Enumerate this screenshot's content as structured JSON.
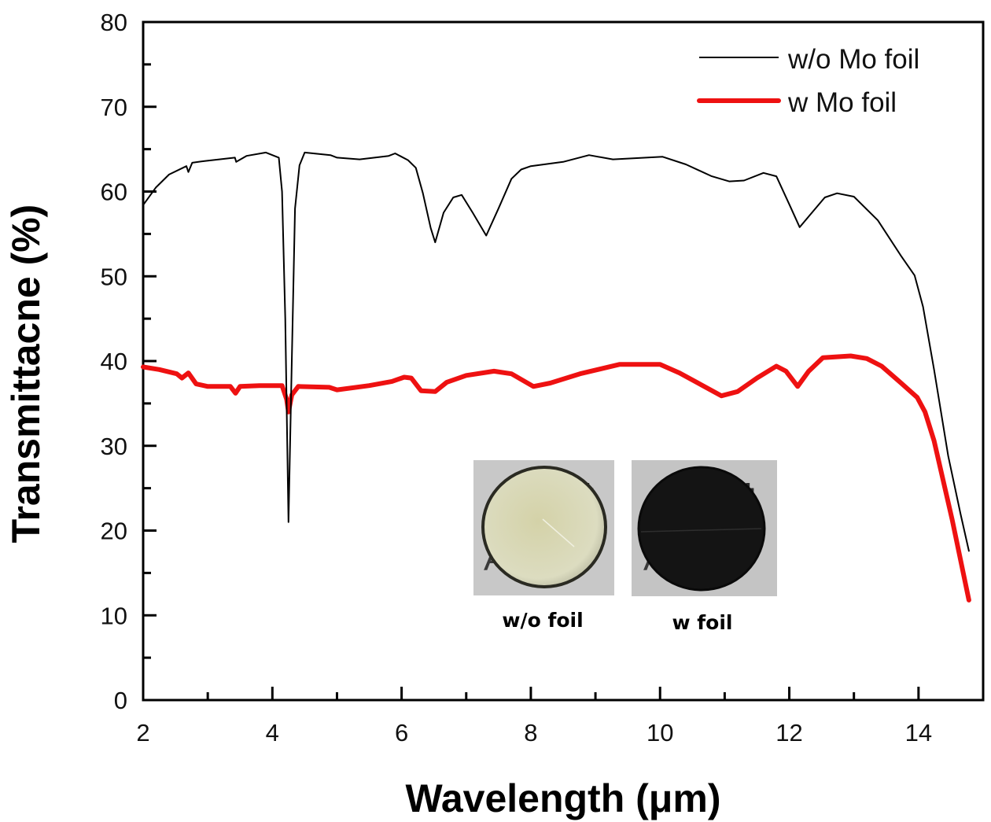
{
  "chart_data": {
    "type": "line",
    "title": "",
    "xlabel": "Wavelength (μm)",
    "ylabel": "Transmittacne (%)",
    "xlim": [
      2,
      15
    ],
    "ylim": [
      0,
      80
    ],
    "x_ticks": [
      2,
      4,
      6,
      8,
      10,
      12,
      14
    ],
    "x_minor_ticks": [
      3,
      5,
      7,
      9,
      11,
      13
    ],
    "y_ticks": [
      0,
      10,
      20,
      30,
      40,
      50,
      60,
      70,
      80
    ],
    "y_minor_ticks": [
      5,
      15,
      25,
      35,
      45,
      55,
      65,
      75
    ],
    "grid": false,
    "legend_position": "top-right",
    "series": [
      {
        "name": "w/o Mo foil",
        "color": "#000000",
        "x": [
          2.0,
          2.2,
          2.4,
          2.67,
          2.7,
          2.76,
          2.95,
          3.42,
          3.44,
          3.6,
          3.9,
          4.1,
          4.15,
          4.2,
          4.25,
          4.3,
          4.35,
          4.42,
          4.5,
          4.9,
          5.0,
          5.35,
          5.8,
          5.9,
          6.1,
          6.22,
          6.33,
          6.45,
          6.52,
          6.65,
          6.8,
          6.93,
          7.1,
          7.31,
          7.5,
          7.7,
          7.85,
          8.0,
          8.5,
          8.9,
          9.27,
          10.04,
          10.4,
          10.8,
          11.07,
          11.3,
          11.6,
          11.8,
          12.0,
          12.16,
          12.35,
          12.55,
          12.74,
          13.0,
          13.37,
          13.73,
          13.94,
          14.07,
          14.24,
          14.46,
          14.65,
          14.78
        ],
        "y": [
          58.4,
          60.5,
          62.0,
          63.0,
          62.3,
          63.4,
          63.6,
          64.0,
          63.5,
          64.2,
          64.6,
          64.0,
          60.0,
          45.0,
          21.0,
          40.0,
          58.0,
          63.1,
          64.6,
          64.3,
          64.0,
          63.8,
          64.2,
          64.5,
          63.7,
          62.8,
          59.8,
          55.7,
          54.0,
          57.5,
          59.3,
          59.6,
          57.5,
          54.8,
          58.0,
          61.5,
          62.6,
          63.0,
          63.5,
          64.3,
          63.8,
          64.1,
          63.2,
          61.8,
          61.2,
          61.3,
          62.2,
          61.8,
          58.5,
          55.8,
          57.5,
          59.3,
          59.8,
          59.4,
          56.6,
          52.4,
          50.1,
          46.4,
          39.0,
          28.8,
          22.0,
          17.6
        ]
      },
      {
        "name": "w Mo foil",
        "color": "#ee1111",
        "x": [
          2.0,
          2.25,
          2.52,
          2.6,
          2.7,
          2.82,
          3.0,
          3.35,
          3.43,
          3.5,
          3.8,
          4.15,
          4.22,
          4.25,
          4.3,
          4.4,
          4.88,
          5.0,
          5.5,
          5.85,
          6.04,
          6.15,
          6.3,
          6.52,
          6.7,
          7.0,
          7.43,
          7.7,
          8.04,
          8.3,
          8.76,
          9.37,
          10.0,
          10.3,
          10.95,
          11.2,
          11.5,
          11.8,
          11.95,
          12.13,
          12.3,
          12.52,
          12.95,
          13.2,
          13.43,
          13.73,
          13.98,
          14.1,
          14.24,
          14.52,
          14.78
        ],
        "y": [
          39.3,
          39.0,
          38.5,
          38.0,
          38.6,
          37.3,
          37.0,
          37.0,
          36.2,
          37.0,
          37.1,
          37.1,
          35.5,
          34.0,
          36.0,
          37.0,
          36.9,
          36.6,
          37.1,
          37.6,
          38.1,
          38.0,
          36.5,
          36.4,
          37.5,
          38.3,
          38.8,
          38.5,
          37.0,
          37.4,
          38.5,
          39.6,
          39.6,
          38.6,
          35.9,
          36.4,
          38.0,
          39.4,
          38.8,
          37.0,
          38.8,
          40.4,
          40.6,
          40.3,
          39.4,
          37.4,
          35.7,
          34.0,
          30.6,
          21.3,
          11.8
        ]
      }
    ],
    "inset": {
      "photos": [
        {
          "label": "w/o foil",
          "disc_color": "#d8d8b4",
          "background": "#c8c8c8"
        },
        {
          "label": "w foil",
          "disc_color": "#141414",
          "background": "#c4c4c4"
        }
      ],
      "background_text": "A y f"
    }
  }
}
